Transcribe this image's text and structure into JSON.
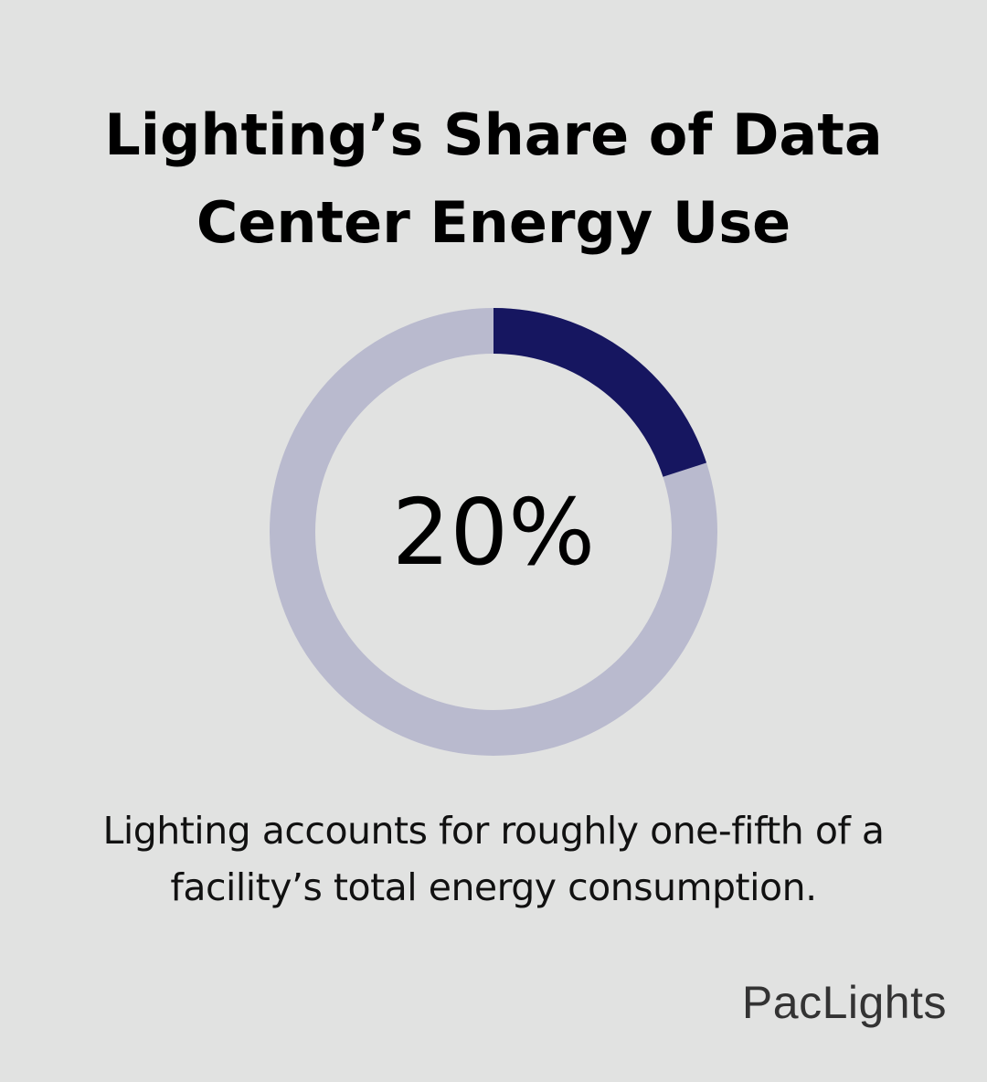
{
  "chart_data": {
    "type": "pie",
    "title_lines": [
      "Lighting’s Share of Data",
      "Center Energy Use"
    ],
    "value_percent": 20,
    "center_label": "20%",
    "caption_lines": [
      "Lighting accounts for roughly one-fifth of a",
      "facility’s total energy consumption."
    ],
    "colors": {
      "filled": "#161660",
      "remaining": "#b9bace",
      "background": "#e1e2e1"
    }
  },
  "brand": {
    "logo_text": "PacLights"
  }
}
